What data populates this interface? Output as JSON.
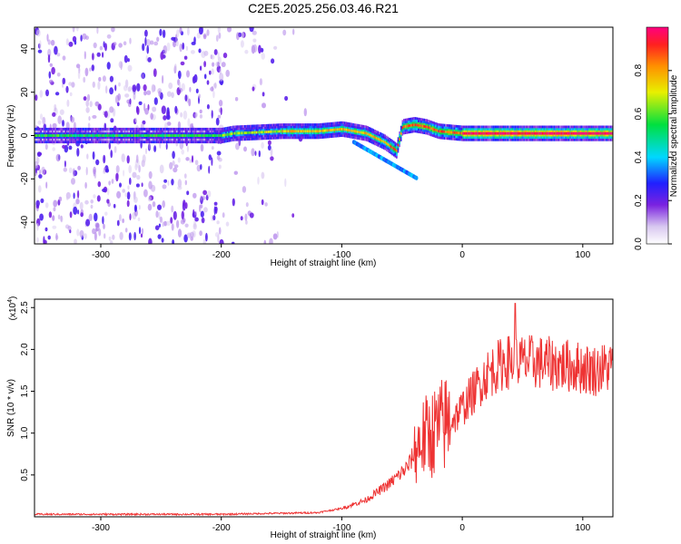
{
  "figure": {
    "title": "C2E5.2025.256.03.46.R21"
  },
  "chart_data": [
    {
      "type": "heatmap",
      "xlabel": "Height of straight line (km)",
      "ylabel": "Frequency (Hz)",
      "xlim": [
        -355,
        125
      ],
      "ylim": [
        -50,
        50
      ],
      "xticks": [
        -300,
        -200,
        -100,
        0,
        100
      ],
      "xtick_labels": [
        "-300",
        "-200",
        "-100",
        "0",
        "100"
      ],
      "yticks": [
        -40,
        -20,
        0,
        20,
        40
      ],
      "ytick_labels": [
        "-40",
        "-20",
        "0",
        "20",
        "40"
      ],
      "colorbar": {
        "label": "Normalized spectral amplitude",
        "range": [
          0,
          1
        ],
        "ticks": [
          0.0,
          0.2,
          0.4,
          0.6,
          0.8
        ],
        "tick_labels": [
          "0.0",
          "0.2",
          "0.4",
          "0.6",
          "0.8"
        ],
        "colormap": "rainbow (violet to red)"
      },
      "ridge": [
        {
          "x": -355,
          "f": 0
        },
        {
          "x": -200,
          "f": 0
        },
        {
          "x": -190,
          "f": 1
        },
        {
          "x": -150,
          "f": 2
        },
        {
          "x": -120,
          "f": 2
        },
        {
          "x": -100,
          "f": 3
        },
        {
          "x": -80,
          "f": 1
        },
        {
          "x": -65,
          "f": -3
        },
        {
          "x": -55,
          "f": -7
        },
        {
          "x": -50,
          "f": 4
        },
        {
          "x": -40,
          "f": 5
        },
        {
          "x": -30,
          "f": 4
        },
        {
          "x": -20,
          "f": 2
        },
        {
          "x": 0,
          "f": 1
        },
        {
          "x": 60,
          "f": 1
        },
        {
          "x": 125,
          "f": 1
        }
      ],
      "grid": false
    },
    {
      "type": "line",
      "xlabel": "Height of straight line (km)",
      "ylabel": "SNR (10 * v/v)",
      "y_multiplier": "(x10",
      "y_multiplier_exp": "4",
      "y_multiplier_close": ")",
      "xlim": [
        -355,
        125
      ],
      "ylim": [
        0,
        2.6
      ],
      "xticks": [
        -300,
        -200,
        -100,
        0,
        100
      ],
      "xtick_labels": [
        "-300",
        "-200",
        "-100",
        "0",
        "100"
      ],
      "yticks": [
        0.5,
        1.0,
        1.5,
        2.0,
        2.5
      ],
      "ytick_labels": [
        "0.5",
        "1.0",
        "1.5",
        "2.0",
        "2.5"
      ],
      "series": [
        {
          "color": "#ee3333",
          "envelope": [
            {
              "x": -355,
              "y": 0.03
            },
            {
              "x": -200,
              "y": 0.03
            },
            {
              "x": -120,
              "y": 0.05
            },
            {
              "x": -100,
              "y": 0.1
            },
            {
              "x": -80,
              "y": 0.2
            },
            {
              "x": -60,
              "y": 0.4
            },
            {
              "x": -45,
              "y": 0.6
            },
            {
              "x": -35,
              "y": 0.9
            },
            {
              "x": -25,
              "y": 1.0
            },
            {
              "x": -15,
              "y": 1.1
            },
            {
              "x": -5,
              "y": 1.2
            },
            {
              "x": 0,
              "y": 1.3
            },
            {
              "x": 10,
              "y": 1.5
            },
            {
              "x": 20,
              "y": 1.7
            },
            {
              "x": 35,
              "y": 1.85
            },
            {
              "x": 60,
              "y": 1.85
            },
            {
              "x": 90,
              "y": 1.8
            },
            {
              "x": 110,
              "y": 1.75
            },
            {
              "x": 125,
              "y": 1.8
            }
          ],
          "peak": {
            "x": 44,
            "y": 2.55
          }
        }
      ],
      "grid": false
    }
  ],
  "colors": {
    "snr_line": "#ee3333",
    "axis": "#000000"
  }
}
